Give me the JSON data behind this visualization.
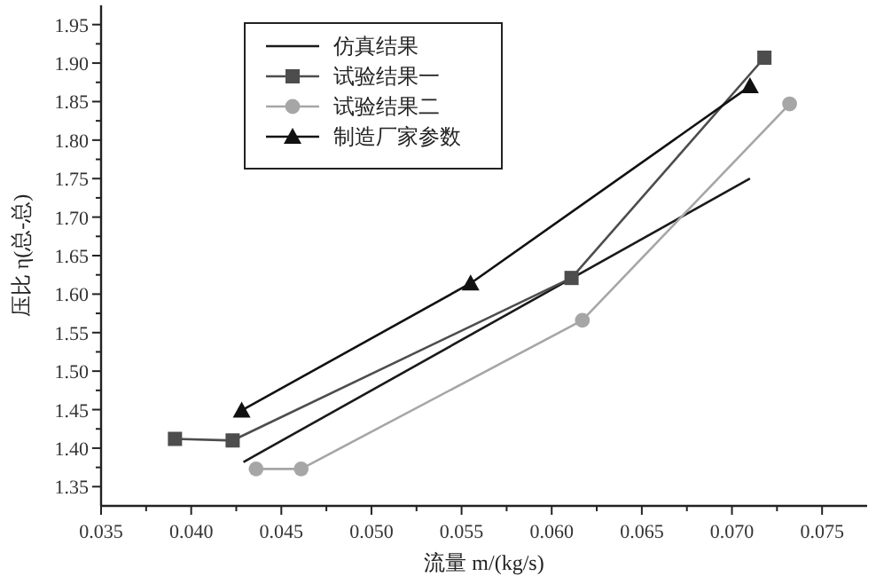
{
  "chart_data": {
    "type": "line",
    "xlabel": "流量 m/(kg/s)",
    "ylabel": "压比 η(总-总)",
    "xlim": [
      0.035,
      0.0775
    ],
    "xticks": [
      {
        "value": 0.035,
        "label": "0.035"
      },
      {
        "value": 0.04,
        "label": "0.040"
      },
      {
        "value": 0.045,
        "label": "0.045"
      },
      {
        "value": 0.05,
        "label": "0.050"
      },
      {
        "value": 0.055,
        "label": "0.055"
      },
      {
        "value": 0.06,
        "label": "0.060"
      },
      {
        "value": 0.065,
        "label": "0.065"
      },
      {
        "value": 0.07,
        "label": "0.070"
      },
      {
        "value": 0.075,
        "label": "0.075"
      }
    ],
    "ylim": [
      1.325,
      1.975
    ],
    "yticks": [
      1.35,
      {
        "value": 1.4,
        "label": "1.40"
      },
      1.45,
      {
        "value": 1.5,
        "label": "1.50"
      },
      1.55,
      {
        "value": 1.6,
        "label": "1.60"
      },
      1.65,
      {
        "value": 1.7,
        "label": "1.70"
      },
      1.75,
      {
        "value": 1.8,
        "label": "1.80"
      },
      1.85,
      {
        "value": 1.9,
        "label": "1.90"
      },
      1.95
    ],
    "grid": false,
    "legend": "top left",
    "series": [
      {
        "name": "仿真结果",
        "color": "#1a1a1a",
        "marker": "none",
        "x": [
          0.0429,
          0.071
        ],
        "values": [
          1.382,
          1.75
        ]
      },
      {
        "name": "试验结果一",
        "color": "#4d4d4d",
        "marker": "square",
        "x": [
          0.0391,
          0.0423,
          0.0611,
          0.0718
        ],
        "values": [
          1.412,
          1.41,
          1.621,
          1.907
        ]
      },
      {
        "name": "试验结果二",
        "color": "#a6a6a6",
        "marker": "circle",
        "x": [
          0.0436,
          0.0461,
          0.0617,
          0.0732
        ],
        "values": [
          1.373,
          1.373,
          1.566,
          1.847
        ]
      },
      {
        "name": "制造厂家参数",
        "color": "#111111",
        "marker": "triangle",
        "x": [
          0.0428,
          0.0555,
          0.071
        ],
        "values": [
          1.449,
          1.614,
          1.87
        ]
      }
    ]
  }
}
